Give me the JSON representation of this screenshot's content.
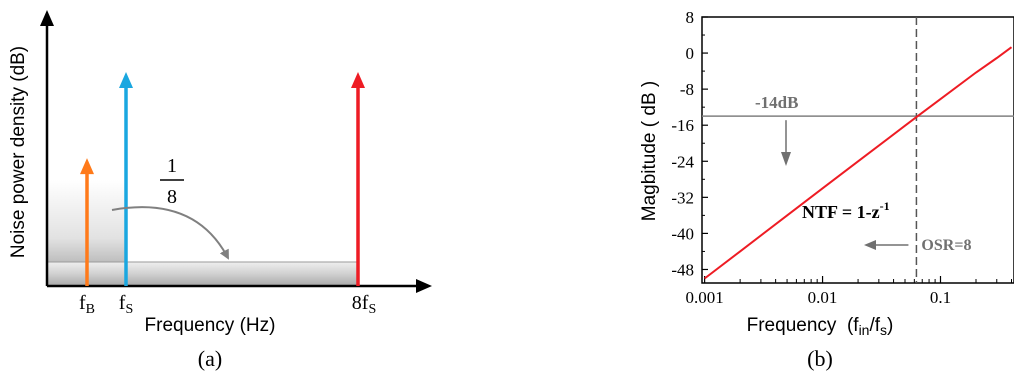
{
  "chart_data": [
    {
      "type": "diagram",
      "panel_label": "(a)",
      "xlabel": "Frequency (Hz)",
      "ylabel": "Noise power density (dB)",
      "tick_labels": [
        {
          "base": "f",
          "sub": "B"
        },
        {
          "base": "f",
          "sub": "S"
        },
        {
          "base": "8f",
          "sub": "S"
        }
      ],
      "fraction": {
        "numerator": "1",
        "denominator": "8"
      },
      "arrows": [
        {
          "name": "fB",
          "color": "#ff7a1a",
          "height": 0.52
        },
        {
          "name": "fS",
          "color": "#1aa7e0",
          "height": 0.87
        },
        {
          "name": "8fS",
          "color": "#ee1c24",
          "height": 0.87
        }
      ],
      "colors": {
        "band": "#bdbdbd",
        "axis": "#000000",
        "curve_arrow": "#808080"
      }
    },
    {
      "type": "line",
      "panel_label": "(b)",
      "xlabel": {
        "main": "Frequency  (",
        "sub1": "in",
        "mid": "/f",
        "sub2": "s",
        "end": ")",
        "prefix": "f"
      },
      "ylabel": "Magbitude ( dB )",
      "x_scale": "log",
      "xlim": [
        0.00095,
        0.42
      ],
      "ylim": [
        -51,
        8
      ],
      "y_ticks": [
        8,
        0,
        -8,
        -16,
        -24,
        -32,
        -40,
        -48
      ],
      "y_tick_labels": [
        "8",
        "0",
        "-8",
        "-16",
        "-24",
        "-32",
        "-40",
        "-48"
      ],
      "x_ticks": [
        0.001,
        0.01,
        0.1
      ],
      "x_tick_labels": [
        "0.001",
        "0.01",
        "0.1"
      ],
      "series": [
        {
          "color": "#ee1c24",
          "x": [
            0.001,
            0.002,
            0.005,
            0.01,
            0.02,
            0.05,
            0.0625,
            0.1,
            0.2,
            0.3,
            0.4
          ],
          "y": [
            -50.0,
            -44.0,
            -36.0,
            -30.0,
            -24.0,
            -16.1,
            -14.2,
            -10.2,
            -4.3,
            -1.1,
            1.3
          ]
        }
      ],
      "hline": {
        "y": -14,
        "label": "-14dB",
        "color": "#808080"
      },
      "vline": {
        "x": 0.0625,
        "label": "OSR=8",
        "color": "#555555"
      },
      "annotation": {
        "base": "NTF = 1-z",
        "sup": "-1"
      }
    }
  ]
}
